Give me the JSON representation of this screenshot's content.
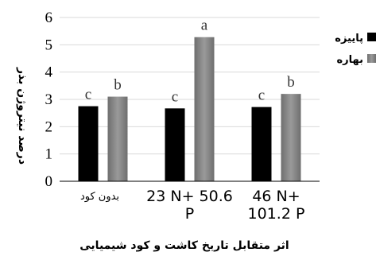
{
  "chart_data": {
    "type": "bar",
    "ylabel": "درصد نیتروژن بذر",
    "xlabel": "اثر متقابل تاریخ کاشت و کود شیمیایی",
    "ylim": [
      0,
      6
    ],
    "yticks": [
      "0",
      "1",
      "2",
      "3",
      "4",
      "5",
      "6"
    ],
    "categories": [
      {
        "lines": [
          "بدون کود"
        ]
      },
      {
        "lines": [
          "23 N+ 50.6",
          "P"
        ]
      },
      {
        "lines": [
          "46 N+",
          "101.2 P"
        ]
      }
    ],
    "series": [
      {
        "name": "پاییزه",
        "color": "#000000",
        "values": [
          2.75,
          2.67,
          2.72
        ],
        "letters": [
          "c",
          "c",
          "c"
        ]
      },
      {
        "name": "بهاره",
        "color": "#7f7f7f",
        "values": [
          3.1,
          5.28,
          3.2
        ],
        "letters": [
          "b",
          "a",
          "b"
        ]
      }
    ],
    "legend_position": "right"
  }
}
